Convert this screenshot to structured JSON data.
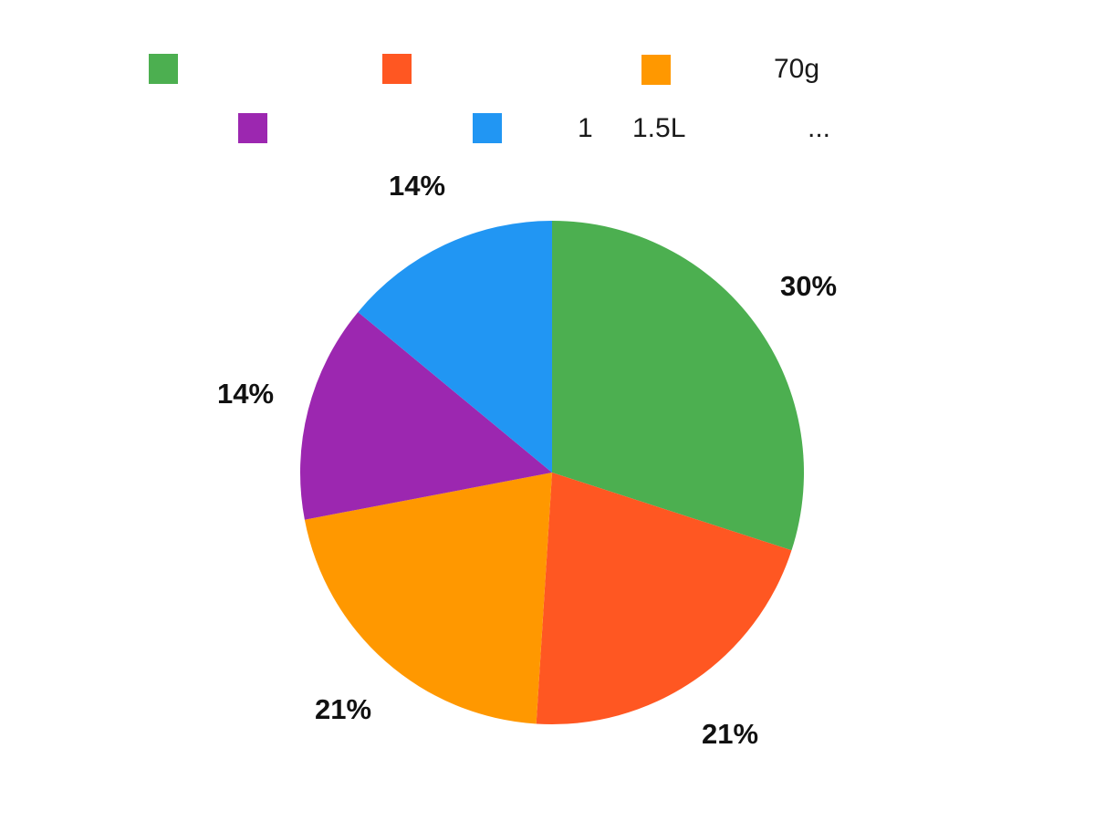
{
  "chart_data": {
    "type": "pie",
    "title": "",
    "direction": "clockwise",
    "start_angle_deg": 0,
    "legend_position": "top",
    "slices": [
      {
        "label": "",
        "value": 30,
        "display": "30%",
        "color": "#4CAF50"
      },
      {
        "label": "",
        "value": 21,
        "display": "21%",
        "color": "#FF5722"
      },
      {
        "label": "70g",
        "value": 21,
        "display": "21%",
        "color": "#FF9800"
      },
      {
        "label": "",
        "value": 14,
        "display": "14%",
        "color": "#9C27B0"
      },
      {
        "label": "1",
        "value": 14,
        "display": "14%",
        "color": "#2196F3"
      }
    ]
  },
  "legend": {
    "rows": [
      {
        "items": [
          {
            "swatch": "#4CAF50",
            "label": ""
          },
          {
            "swatch": "#FF5722",
            "label": ""
          },
          {
            "swatch": "#FF9800",
            "label": "70g"
          }
        ]
      },
      {
        "items": [
          {
            "swatch": "#9C27B0",
            "label": ""
          },
          {
            "swatch": "#2196F3",
            "label": "1"
          },
          {
            "swatch": null,
            "label": "1.5L"
          },
          {
            "swatch": null,
            "label": "..."
          }
        ]
      }
    ]
  }
}
